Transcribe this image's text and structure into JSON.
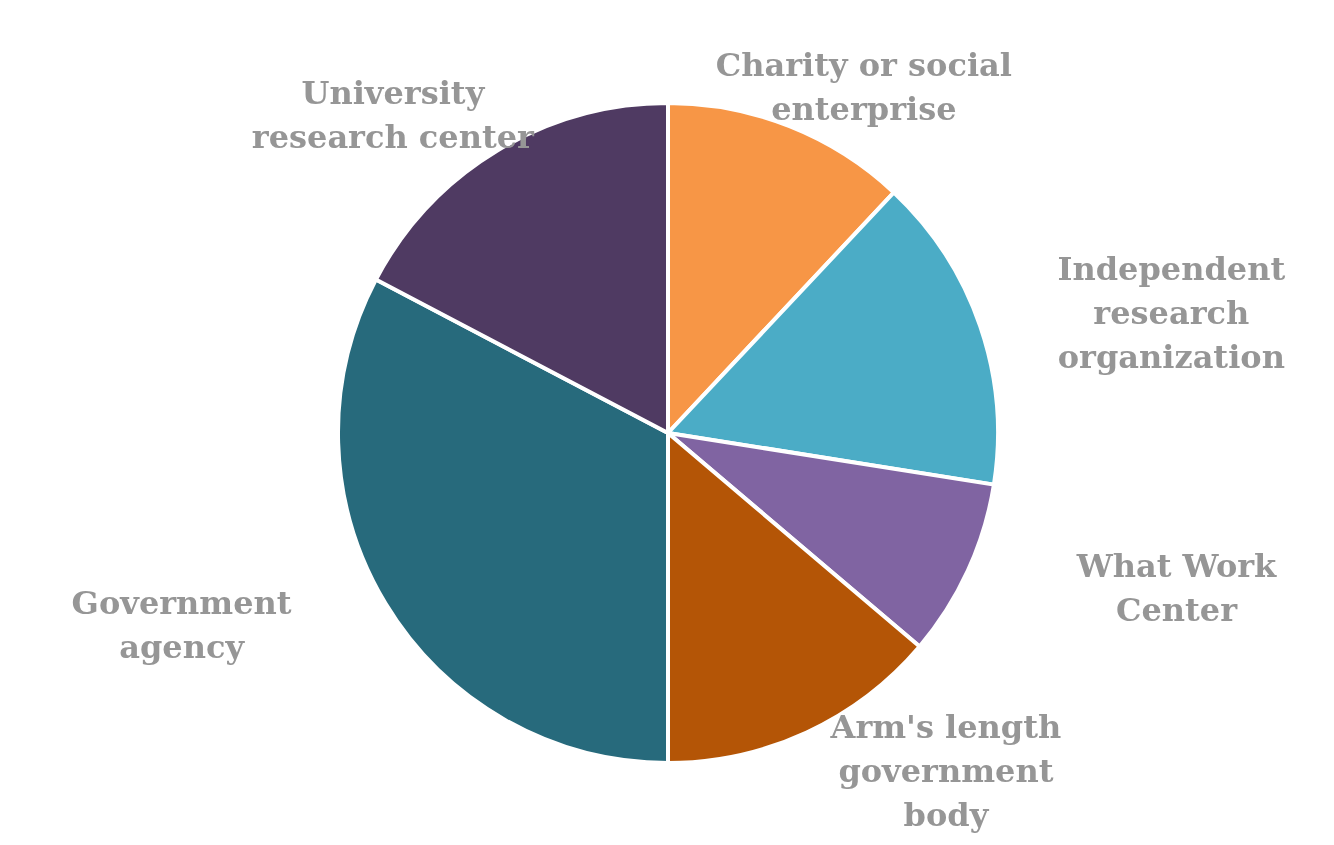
{
  "chart_data": {
    "type": "pie",
    "categories": [
      "Charity or social enterprise",
      "Independent research organization",
      "What Work Center",
      "Arm's length government body",
      "Government agency",
      "University research center"
    ],
    "values": [
      12,
      15.5,
      8.7,
      13.8,
      32.7,
      17.3
    ],
    "colors": [
      "#f79646",
      "#4bacc6",
      "#8064a2",
      "#b45506",
      "#276a7c",
      "#4f3a62"
    ],
    "legend": false
  }
}
